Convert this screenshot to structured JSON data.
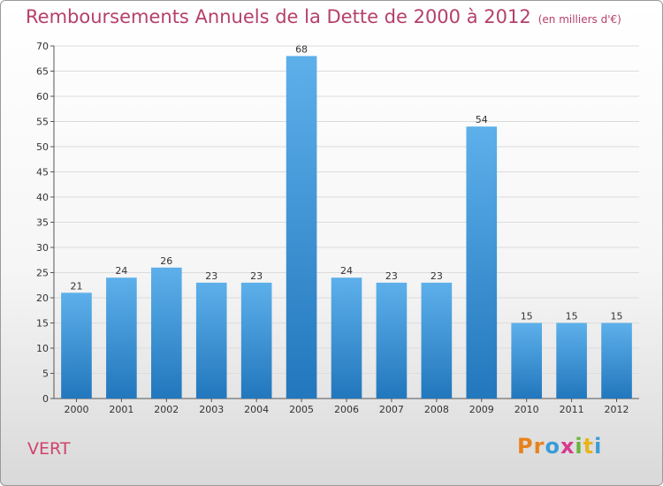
{
  "chart_data": {
    "type": "bar",
    "title": "Remboursements Annuels de la Dette de 2000 à 2012",
    "subtitle": "(en milliers d'€)",
    "categories": [
      "2000",
      "2001",
      "2002",
      "2003",
      "2004",
      "2005",
      "2006",
      "2007",
      "2008",
      "2009",
      "2010",
      "2011",
      "2012"
    ],
    "values": [
      21,
      24,
      26,
      23,
      23,
      68,
      24,
      23,
      23,
      54,
      15,
      15,
      15
    ],
    "ylim": [
      0,
      70
    ],
    "yticks": [
      0,
      5,
      10,
      15,
      20,
      25,
      30,
      35,
      40,
      45,
      50,
      55,
      60,
      65,
      70
    ],
    "grid": true,
    "bar_color": "#3a8fd6"
  },
  "footer": {
    "commune": "VERT",
    "logo": [
      "P",
      "r",
      "o",
      "x",
      "i",
      "t",
      "i"
    ],
    "logo_colors": [
      "#e8821c",
      "#e8821c",
      "#3a9bd8",
      "#d63a8f",
      "#6ab43c",
      "#e8b41c",
      "#3a9bd8"
    ]
  }
}
